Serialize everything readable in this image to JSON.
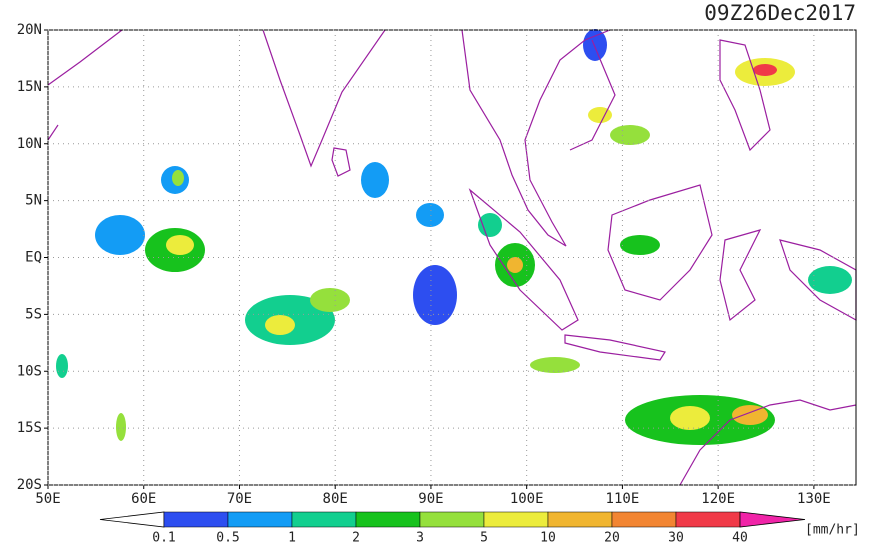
{
  "map": {
    "title": "09Z26Dec2017",
    "xlim": [
      50,
      134.4
    ],
    "ylim": [
      -20,
      20
    ],
    "lon_ticks": [
      {
        "value": 50,
        "label": "50E"
      },
      {
        "value": 60,
        "label": "60E"
      },
      {
        "value": 70,
        "label": "70E"
      },
      {
        "value": 80,
        "label": "80E"
      },
      {
        "value": 90,
        "label": "90E"
      },
      {
        "value": 100,
        "label": "100E"
      },
      {
        "value": 110,
        "label": "110E"
      },
      {
        "value": 120,
        "label": "120E"
      },
      {
        "value": 130,
        "label": "130E"
      }
    ],
    "lat_ticks": [
      {
        "value": 20,
        "label": "20N"
      },
      {
        "value": 15,
        "label": "15N"
      },
      {
        "value": 10,
        "label": "10N"
      },
      {
        "value": 5,
        "label": "5N"
      },
      {
        "value": 0,
        "label": "EQ"
      },
      {
        "value": -5,
        "label": "5S"
      },
      {
        "value": -10,
        "label": "10S"
      },
      {
        "value": -15,
        "label": "15S"
      },
      {
        "value": -20,
        "label": "20S"
      }
    ],
    "grid": true,
    "colorbar": {
      "levels": [
        0.1,
        0.5,
        1,
        2,
        3,
        5,
        10,
        20,
        30,
        40
      ],
      "colors": [
        "#ffffff",
        "#2d4ef0",
        "#139cf5",
        "#12cf8f",
        "#17c21d",
        "#95e03c",
        "#ecec3c",
        "#f0b530",
        "#f28532",
        "#f03a48",
        "#f024a8"
      ],
      "unit": "[mm/hr]"
    }
  }
}
